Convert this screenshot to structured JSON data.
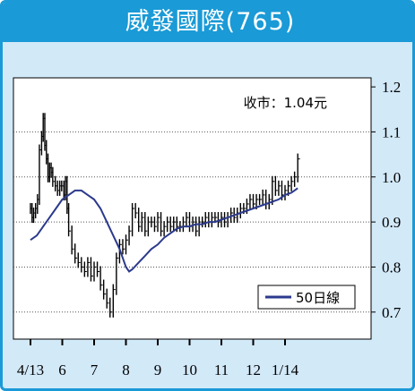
{
  "title": "威發國際(765)",
  "colors": {
    "frame": "#1a9ad6",
    "background": "#d2e9f8",
    "plot": "#ffffff",
    "price": "#000000",
    "ma50": "#2b3a8c"
  },
  "chart_data": {
    "type": "line",
    "title": "威發國際(765)",
    "annotation": "收市：1.04元",
    "x_tick_labels": [
      "4/13",
      "6",
      "7",
      "8",
      "9",
      "10",
      "11",
      "12",
      "1/14"
    ],
    "y_tick_labels": [
      "0.7",
      "0.8",
      "0.9",
      "1.0",
      "1.1",
      "1.2"
    ],
    "ylim": [
      0.64,
      1.22
    ],
    "grid": "horizontal dotted",
    "legend_position": "bottom-right",
    "series": [
      {
        "name": "",
        "style": "daily high-low bars",
        "points": [
          [
            0.0,
            0.93
          ],
          [
            0.05,
            0.91
          ],
          [
            0.1,
            0.92
          ],
          [
            0.16,
            0.93
          ],
          [
            0.22,
            0.95
          ],
          [
            0.28,
            1.06
          ],
          [
            0.35,
            1.09
          ],
          [
            0.4,
            1.13
          ],
          [
            0.45,
            1.07
          ],
          [
            0.5,
            1.04
          ],
          [
            0.55,
            1.0
          ],
          [
            0.6,
            1.02
          ],
          [
            0.65,
            1.01
          ],
          [
            0.7,
            0.99
          ],
          [
            0.78,
            0.98
          ],
          [
            0.85,
            0.97
          ],
          [
            0.92,
            0.98
          ],
          [
            0.98,
            0.98
          ],
          [
            1.05,
            0.96
          ],
          [
            1.1,
            0.99
          ],
          [
            1.15,
            0.93
          ],
          [
            1.2,
            0.88
          ],
          [
            1.3,
            0.84
          ],
          [
            1.4,
            0.82
          ],
          [
            1.5,
            0.81
          ],
          [
            1.6,
            0.8
          ],
          [
            1.7,
            0.79
          ],
          [
            1.8,
            0.81
          ],
          [
            1.9,
            0.78
          ],
          [
            2.0,
            0.8
          ],
          [
            2.1,
            0.79
          ],
          [
            2.2,
            0.76
          ],
          [
            2.3,
            0.74
          ],
          [
            2.4,
            0.72
          ],
          [
            2.5,
            0.7
          ],
          [
            2.6,
            0.75
          ],
          [
            2.7,
            0.82
          ],
          [
            2.8,
            0.85
          ],
          [
            2.9,
            0.84
          ],
          [
            3.0,
            0.86
          ],
          [
            3.1,
            0.88
          ],
          [
            3.2,
            0.93
          ],
          [
            3.3,
            0.92
          ],
          [
            3.4,
            0.89
          ],
          [
            3.5,
            0.91
          ],
          [
            3.6,
            0.88
          ],
          [
            3.7,
            0.9
          ],
          [
            3.8,
            0.9
          ],
          [
            3.9,
            0.89
          ],
          [
            4.0,
            0.91
          ],
          [
            4.1,
            0.88
          ],
          [
            4.2,
            0.89
          ],
          [
            4.3,
            0.9
          ],
          [
            4.4,
            0.89
          ],
          [
            4.5,
            0.9
          ],
          [
            4.6,
            0.89
          ],
          [
            4.7,
            0.89
          ],
          [
            4.8,
            0.9
          ],
          [
            4.9,
            0.91
          ],
          [
            5.0,
            0.89
          ],
          [
            5.1,
            0.9
          ],
          [
            5.2,
            0.88
          ],
          [
            5.3,
            0.9
          ],
          [
            5.4,
            0.9
          ],
          [
            5.5,
            0.91
          ],
          [
            5.6,
            0.9
          ],
          [
            5.7,
            0.91
          ],
          [
            5.8,
            0.91
          ],
          [
            5.9,
            0.9
          ],
          [
            6.0,
            0.91
          ],
          [
            6.1,
            0.9
          ],
          [
            6.2,
            0.91
          ],
          [
            6.3,
            0.92
          ],
          [
            6.4,
            0.91
          ],
          [
            6.5,
            0.92
          ],
          [
            6.6,
            0.93
          ],
          [
            6.7,
            0.93
          ],
          [
            6.8,
            0.94
          ],
          [
            6.9,
            0.95
          ],
          [
            7.0,
            0.94
          ],
          [
            7.1,
            0.95
          ],
          [
            7.2,
            0.95
          ],
          [
            7.3,
            0.96
          ],
          [
            7.4,
            0.94
          ],
          [
            7.5,
            0.95
          ],
          [
            7.6,
            0.99
          ],
          [
            7.7,
            0.97
          ],
          [
            7.8,
            0.98
          ],
          [
            7.9,
            0.96
          ],
          [
            8.0,
            0.97
          ],
          [
            8.1,
            0.98
          ],
          [
            8.2,
            0.99
          ],
          [
            8.3,
            1.0
          ],
          [
            8.4,
            1.04
          ]
        ]
      },
      {
        "name": "50日線",
        "style": "line",
        "points": [
          [
            0.0,
            0.86
          ],
          [
            0.2,
            0.87
          ],
          [
            0.4,
            0.89
          ],
          [
            0.6,
            0.91
          ],
          [
            0.8,
            0.93
          ],
          [
            1.0,
            0.95
          ],
          [
            1.2,
            0.96
          ],
          [
            1.4,
            0.97
          ],
          [
            1.6,
            0.97
          ],
          [
            1.8,
            0.96
          ],
          [
            2.0,
            0.95
          ],
          [
            2.2,
            0.93
          ],
          [
            2.4,
            0.9
          ],
          [
            2.6,
            0.87
          ],
          [
            2.8,
            0.84
          ],
          [
            3.0,
            0.8
          ],
          [
            3.1,
            0.79
          ],
          [
            3.2,
            0.795
          ],
          [
            3.4,
            0.81
          ],
          [
            3.6,
            0.825
          ],
          [
            3.8,
            0.84
          ],
          [
            4.0,
            0.85
          ],
          [
            4.2,
            0.865
          ],
          [
            4.4,
            0.875
          ],
          [
            4.6,
            0.885
          ],
          [
            4.8,
            0.89
          ],
          [
            5.0,
            0.89
          ],
          [
            5.2,
            0.895
          ],
          [
            5.4,
            0.895
          ],
          [
            5.6,
            0.9
          ],
          [
            5.8,
            0.9
          ],
          [
            6.0,
            0.905
          ],
          [
            6.2,
            0.91
          ],
          [
            6.4,
            0.915
          ],
          [
            6.6,
            0.92
          ],
          [
            6.8,
            0.925
          ],
          [
            7.0,
            0.93
          ],
          [
            7.2,
            0.935
          ],
          [
            7.4,
            0.94
          ],
          [
            7.6,
            0.945
          ],
          [
            7.8,
            0.95
          ],
          [
            8.0,
            0.96
          ],
          [
            8.2,
            0.965
          ],
          [
            8.4,
            0.975
          ]
        ]
      }
    ]
  }
}
